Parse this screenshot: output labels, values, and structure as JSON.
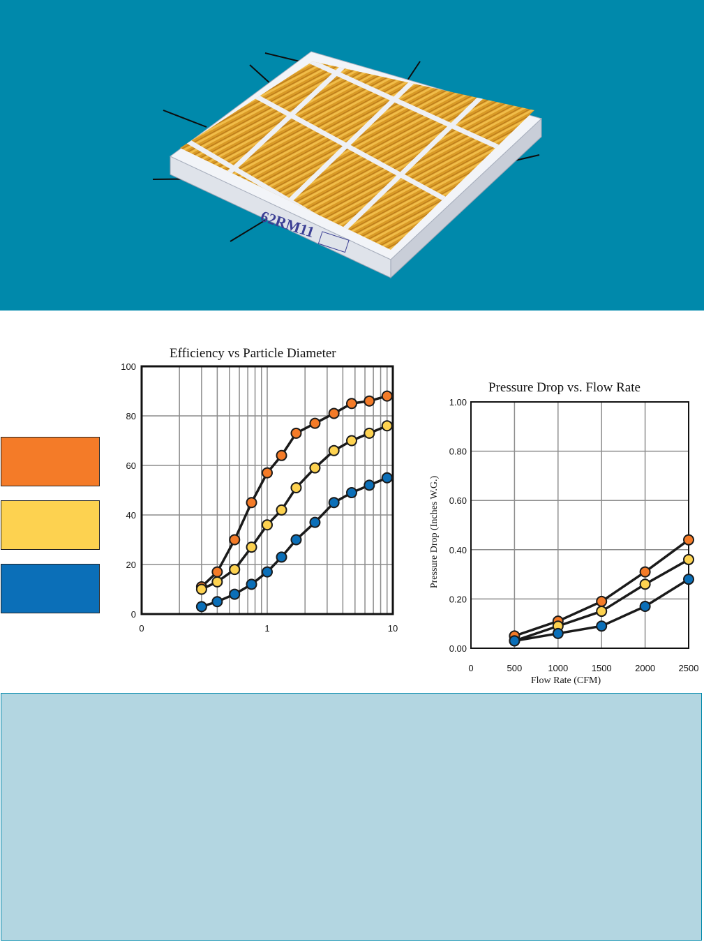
{
  "colors": {
    "hero_bg": "#0089ab",
    "panel_bg": "#b3d6e1",
    "series_orange": "#f47b28",
    "series_yellow": "#fdd250",
    "series_blue": "#0b6fb8",
    "grid": "#8c8c8c",
    "line": "#1a1a1a"
  },
  "product": {
    "filter_label": "62RM11",
    "icon": "pleated-air-filter-image"
  },
  "legend": {
    "swatches": [
      "#f47b28",
      "#fdd250",
      "#0b6fb8"
    ]
  },
  "chart_data": [
    {
      "type": "line",
      "title": "Efficiency vs Particle Diameter",
      "xlabel": "",
      "ylabel": "",
      "x_scale": "log",
      "xlim": [
        0.1,
        10
      ],
      "ylim": [
        0,
        100
      ],
      "x_ticks": [
        "0",
        "1",
        "10"
      ],
      "y_ticks": [
        "0",
        "20",
        "40",
        "60",
        "80",
        "100"
      ],
      "grid": true,
      "series": [
        {
          "color": "#f47b28",
          "x": [
            0.3,
            0.4,
            0.55,
            0.75,
            1.0,
            1.3,
            1.7,
            2.4,
            3.4,
            4.7,
            6.5,
            9.0
          ],
          "y": [
            11,
            17,
            30,
            45,
            57,
            64,
            73,
            77,
            81,
            85,
            86,
            88
          ]
        },
        {
          "color": "#fdd250",
          "x": [
            0.3,
            0.4,
            0.55,
            0.75,
            1.0,
            1.3,
            1.7,
            2.4,
            3.4,
            4.7,
            6.5,
            9.0
          ],
          "y": [
            10,
            13,
            18,
            27,
            36,
            42,
            51,
            59,
            66,
            70,
            73,
            76
          ]
        },
        {
          "color": "#0b6fb8",
          "x": [
            0.3,
            0.4,
            0.55,
            0.75,
            1.0,
            1.3,
            1.7,
            2.4,
            3.4,
            4.7,
            6.5,
            9.0
          ],
          "y": [
            3,
            5,
            8,
            12,
            17,
            23,
            30,
            37,
            45,
            49,
            52,
            55
          ]
        }
      ]
    },
    {
      "type": "line",
      "title": "Pressure Drop vs. Flow Rate",
      "xlabel": "Flow Rate (CFM)",
      "ylabel": "Pressure Drop (Inches W.G.)",
      "xlim": [
        0,
        2500
      ],
      "ylim": [
        0,
        1.0
      ],
      "x_ticks": [
        "0",
        "500",
        "1000",
        "1500",
        "2000",
        "2500"
      ],
      "y_ticks": [
        "0.00",
        "0.20",
        "0.40",
        "0.60",
        "0.80",
        "1.00"
      ],
      "grid": true,
      "series": [
        {
          "color": "#f47b28",
          "x": [
            500,
            1000,
            1500,
            2000,
            2500
          ],
          "y": [
            0.05,
            0.11,
            0.19,
            0.31,
            0.44
          ]
        },
        {
          "color": "#fdd250",
          "x": [
            500,
            1000,
            1500,
            2000,
            2500
          ],
          "y": [
            0.03,
            0.09,
            0.15,
            0.26,
            0.36
          ]
        },
        {
          "color": "#0b6fb8",
          "x": [
            500,
            1000,
            1500,
            2000,
            2500
          ],
          "y": [
            0.03,
            0.06,
            0.09,
            0.17,
            0.28
          ]
        }
      ]
    }
  ]
}
